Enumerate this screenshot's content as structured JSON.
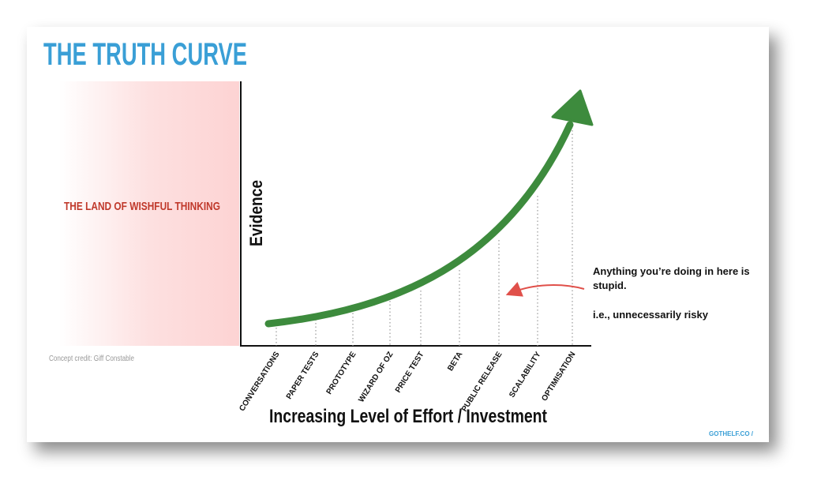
{
  "title": "THE TRUTH CURVE",
  "wishful_label": "THE LAND OF WISHFUL THINKING",
  "credit": "Concept credit: Giff Constable",
  "y_axis_label": "Evidence",
  "x_axis_label": "Increasing Level of Effort / Investment",
  "stages": [
    "CONVERSATIONS",
    "PAPER TESTS",
    "PROTOTYPE",
    "WIZARD OF OZ",
    "PRICE TEST",
    "BETA",
    "PUBLIC RELEASE",
    "SCALABILITY",
    "OPTIMISATION"
  ],
  "annotation": {
    "line1": "Anything you’re doing in here is",
    "line2": "stupid.",
    "line3": "i.e., unnecessarily risky"
  },
  "footer": "GOTHELF.CO /"
}
